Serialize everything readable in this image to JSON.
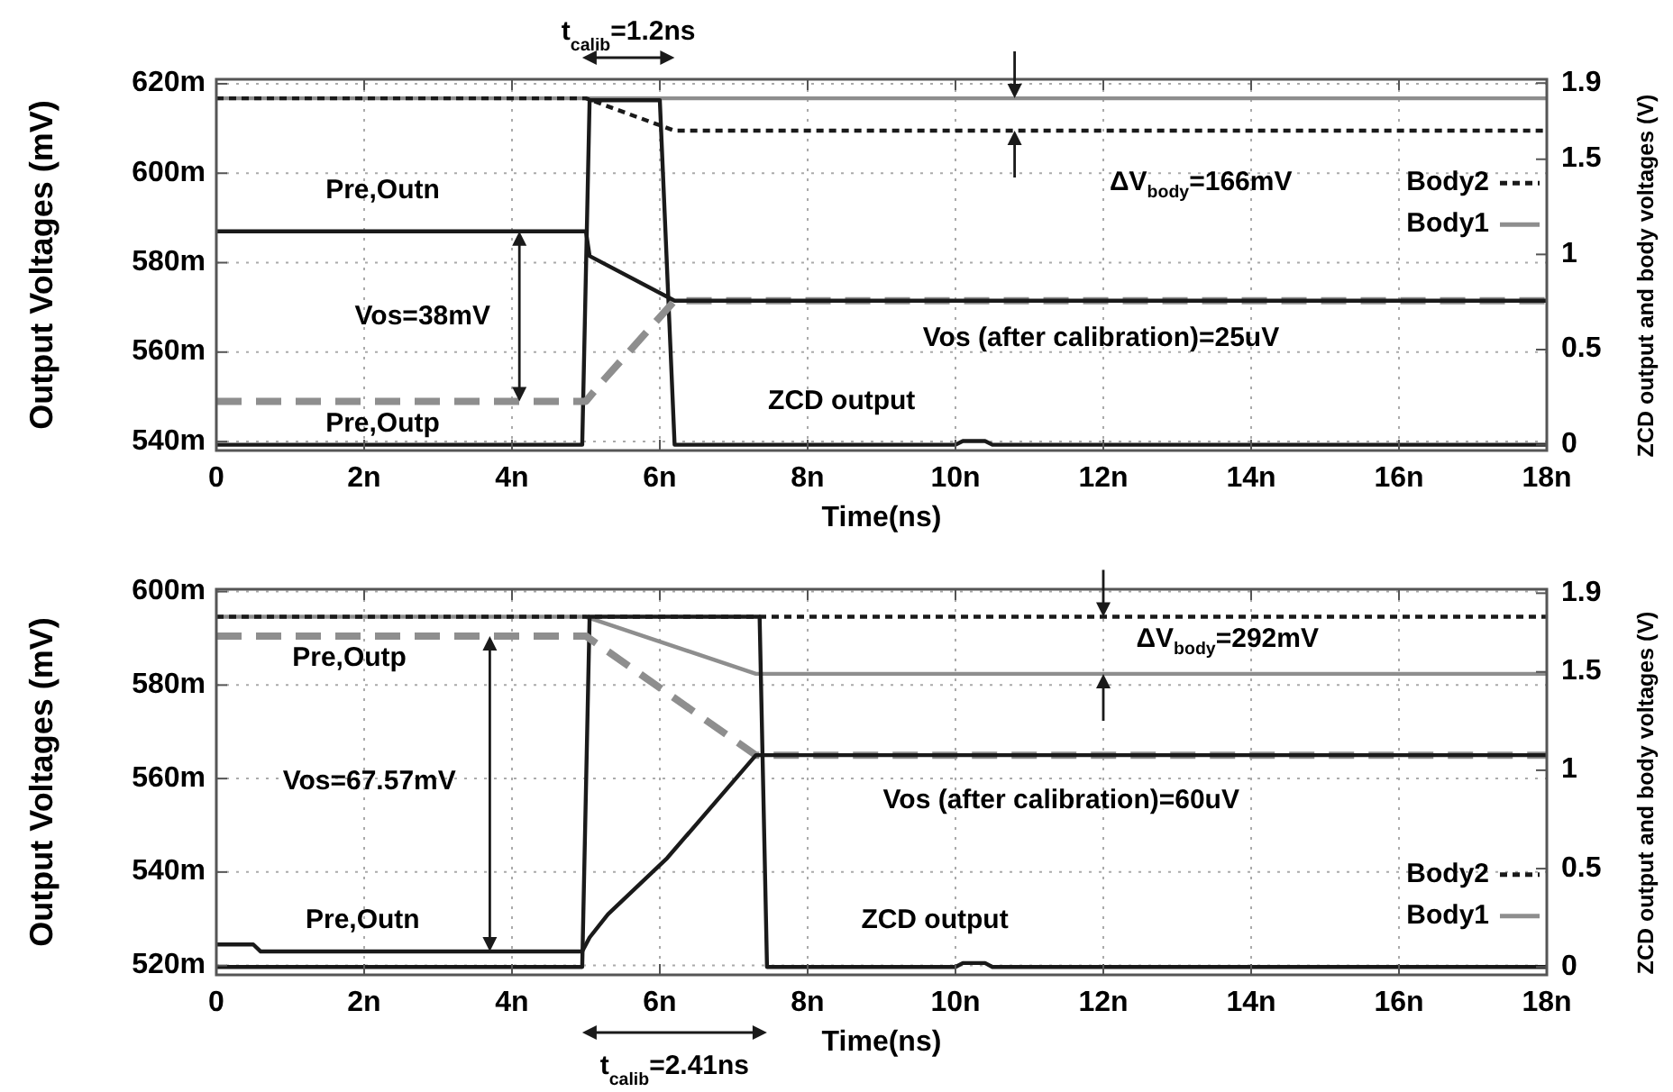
{
  "chart_data": [
    {
      "type": "line",
      "xlabel": "Time(ns)",
      "ylabel": "Output Voltages (mV)",
      "y2label": "ZCD output and body voltages (V)",
      "xlim": [
        0,
        18
      ],
      "xticks": [
        0,
        {
          "value": 2,
          "label": "2n"
        },
        {
          "value": 4,
          "label": "4n"
        },
        {
          "value": 6,
          "label": "6n"
        },
        {
          "value": 8,
          "label": "8n"
        },
        {
          "value": 10,
          "label": "10n"
        },
        {
          "value": 12,
          "label": "12n"
        },
        {
          "value": 14,
          "label": "14n"
        },
        {
          "value": 16,
          "label": "16n"
        },
        {
          "value": 18,
          "label": "18n"
        }
      ],
      "ylim": [
        538,
        621
      ],
      "yticks": [
        {
          "value": 540,
          "label": "540m"
        },
        {
          "value": 560,
          "label": "560m"
        },
        {
          "value": 580,
          "label": "580m"
        },
        {
          "value": 600,
          "label": "600m"
        },
        {
          "value": 620,
          "label": "620m"
        }
      ],
      "y2lim": [
        -0.03,
        1.92
      ],
      "y2ticks": [
        0,
        0.5,
        1,
        1.5,
        1.9
      ],
      "grid": true,
      "legend": "right",
      "annotations": [
        "t$_{calib}$=1.2ns",
        "ΔV$_{body}$=166mV",
        "Vos=38mV",
        "Vos (after calibration)=25uV"
      ],
      "series": [
        {
          "name": "Pre,Outn",
          "color": "#1a1a1a",
          "line_style": "solid",
          "x": [
            0,
            5,
            5.05,
            6.2,
            18
          ],
          "values": [
            587,
            587,
            581.5,
            571.5,
            571.5
          ]
        },
        {
          "name": "Pre,Outp",
          "color": "#8e8e8e",
          "line_style": "dashed",
          "x": [
            0,
            5,
            5.2,
            6.2,
            18
          ],
          "values": [
            549,
            549,
            553,
            571.5,
            571.5
          ]
        },
        {
          "name": "ZCD output",
          "color": "#1a1a1a",
          "line_style": "solid",
          "axis": "y2",
          "x": [
            0,
            4.95,
            5.05,
            6.0,
            6.2,
            10,
            10.1,
            10.4,
            10.5,
            18
          ],
          "values": [
            0,
            0,
            1.81,
            1.81,
            0,
            0,
            0.02,
            0.02,
            0,
            0
          ]
        },
        {
          "name": "Body2",
          "color": "#1a1a1a",
          "line_style": "dotted",
          "axis": "y2",
          "x": [
            0,
            5,
            6.2,
            18
          ],
          "values": [
            1.82,
            1.82,
            1.65,
            1.65
          ]
        },
        {
          "name": "Body1",
          "color": "#8e8e8e",
          "line_style": "solid",
          "axis": "y2",
          "x": [
            0,
            18
          ],
          "values": [
            1.82,
            1.82
          ]
        }
      ]
    },
    {
      "type": "line",
      "xlabel": "Time(ns)",
      "ylabel": "Output Voltages (mV)",
      "y2label": "ZCD output and body voltages (V)",
      "xlim": [
        0,
        18
      ],
      "xticks": [
        0,
        {
          "value": 2,
          "label": "2n"
        },
        {
          "value": 4,
          "label": "4n"
        },
        {
          "value": 6,
          "label": "6n"
        },
        {
          "value": 8,
          "label": "8n"
        },
        {
          "value": 10,
          "label": "10n"
        },
        {
          "value": 12,
          "label": "12n"
        },
        {
          "value": 14,
          "label": "14n"
        },
        {
          "value": 16,
          "label": "16n"
        },
        {
          "value": 18,
          "label": "18n"
        }
      ],
      "ylim": [
        518,
        600.5
      ],
      "yticks": [
        {
          "value": 520,
          "label": "520m"
        },
        {
          "value": 540,
          "label": "540m"
        },
        {
          "value": 560,
          "label": "560m"
        },
        {
          "value": 580,
          "label": "580m"
        },
        {
          "value": 600,
          "label": "600m"
        }
      ],
      "y2lim": [
        -0.04,
        1.92
      ],
      "y2ticks": [
        0,
        0.5,
        1,
        1.5,
        1.9
      ],
      "grid": true,
      "legend": "bottom right",
      "annotations": [
        "t$_{calib}$=2.41ns",
        "ΔV$_{body}$=292mV",
        "Vos=67.57mV",
        "Vos (after calibration)=60uV"
      ],
      "series": [
        {
          "name": "Pre,Outn",
          "color": "#1a1a1a",
          "line_style": "solid",
          "x": [
            0,
            0.5,
            0.6,
            4.95,
            5.05,
            5.3,
            6.1,
            7.3,
            18
          ],
          "values": [
            524.5,
            524.5,
            523,
            523,
            526,
            531,
            543,
            565,
            565
          ]
        },
        {
          "name": "Pre,Outp",
          "color": "#8e8e8e",
          "line_style": "dashed",
          "x": [
            0,
            5,
            7.3,
            18
          ],
          "values": [
            590.5,
            590.5,
            565,
            565
          ]
        },
        {
          "name": "ZCD output",
          "color": "#1a1a1a",
          "line_style": "solid",
          "axis": "y2",
          "x": [
            0,
            4.95,
            5.05,
            7.35,
            7.45,
            10,
            10.1,
            10.4,
            10.5,
            18
          ],
          "values": [
            0,
            0,
            1.78,
            1.78,
            0,
            0,
            0.02,
            0.02,
            0,
            0
          ]
        },
        {
          "name": "Body2",
          "color": "#1a1a1a",
          "line_style": "dotted",
          "axis": "y2",
          "x": [
            0,
            18
          ],
          "values": [
            1.78,
            1.78
          ]
        },
        {
          "name": "Body1",
          "color": "#8e8e8e",
          "line_style": "solid",
          "axis": "y2",
          "x": [
            0,
            5,
            7.3,
            18
          ],
          "values": [
            1.78,
            1.78,
            1.49,
            1.49
          ]
        }
      ]
    }
  ]
}
